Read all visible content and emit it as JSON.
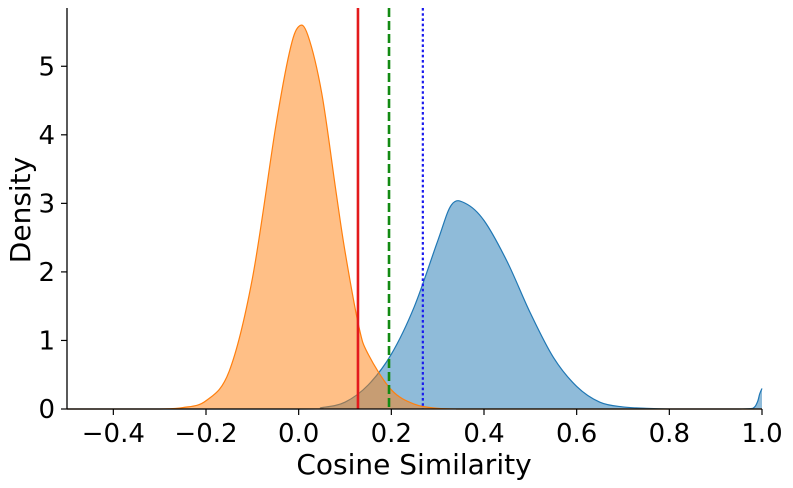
{
  "chart_data": {
    "type": "area",
    "title": "",
    "xlabel": "Cosine Similarity",
    "ylabel": "Density",
    "xlim": [
      -0.5,
      1.0
    ],
    "ylim": [
      0,
      5.85
    ],
    "xticks": [
      -0.4,
      -0.2,
      0.0,
      0.2,
      0.4,
      0.6,
      0.8,
      1.0
    ],
    "xtick_labels": [
      "−0.4",
      "−0.2",
      "0.0",
      "0.2",
      "0.4",
      "0.6",
      "0.8",
      "1.0"
    ],
    "yticks": [
      0,
      1,
      2,
      3,
      4,
      5
    ],
    "ytick_labels": [
      "0",
      "1",
      "2",
      "3",
      "4",
      "5"
    ],
    "grid": false,
    "legend": "none",
    "series": [
      {
        "color": "#1f77b4",
        "x": [
          -0.5,
          0.0,
          0.05,
          0.1,
          0.15,
          0.2,
          0.25,
          0.3,
          0.33,
          0.36,
          0.4,
          0.45,
          0.5,
          0.55,
          0.6,
          0.65,
          0.7,
          0.75,
          0.8,
          0.85,
          0.9,
          0.95,
          0.98,
          0.99,
          0.995,
          1.0
        ],
        "y": [
          0.0,
          0.0,
          0.02,
          0.1,
          0.35,
          0.8,
          1.5,
          2.45,
          2.98,
          3.0,
          2.75,
          2.15,
          1.4,
          0.75,
          0.33,
          0.1,
          0.03,
          0.01,
          0.0,
          0.0,
          0.0,
          0.0,
          0.01,
          0.1,
          0.22,
          0.3
        ]
      },
      {
        "color": "#ff7f0e",
        "x": [
          -0.5,
          -0.4,
          -0.3,
          -0.25,
          -0.2,
          -0.15,
          -0.1,
          -0.05,
          -0.02,
          0.0,
          0.02,
          0.05,
          0.08,
          0.1,
          0.13,
          0.15,
          0.2,
          0.25,
          0.3,
          0.35,
          0.4,
          1.0
        ],
        "y": [
          0.0,
          0.0,
          0.0,
          0.02,
          0.12,
          0.55,
          1.9,
          4.1,
          5.2,
          5.58,
          5.45,
          4.6,
          3.2,
          2.3,
          1.2,
          0.8,
          0.28,
          0.07,
          0.01,
          0.0,
          0.0,
          0.0
        ]
      }
    ],
    "vlines": [
      {
        "x": 0.128,
        "color": "#e31a1c",
        "style": "solid"
      },
      {
        "x": 0.195,
        "color": "#138a13",
        "style": "dashed"
      },
      {
        "x": 0.268,
        "color": "#1a1aee",
        "style": "dotted"
      }
    ]
  }
}
